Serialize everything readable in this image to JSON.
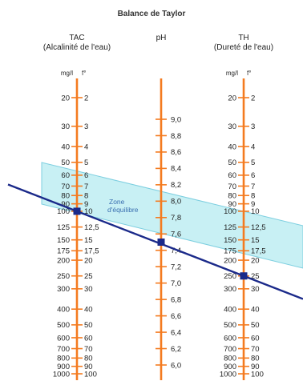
{
  "title": "Balance de Taylor",
  "columns": {
    "tac": {
      "title": "TAC",
      "subtitle": "(Alcalinité de l'eau)",
      "unit_mgl": "mg/l",
      "unit_f": "f°"
    },
    "ph": {
      "title": "pH"
    },
    "th": {
      "title": "TH",
      "subtitle": "(Dureté de l'eau)",
      "unit_mgl": "mg/l",
      "unit_f": "f°"
    }
  },
  "hardness_scale": [
    {
      "mgl": "20",
      "f": "2"
    },
    {
      "mgl": "30",
      "f": "3"
    },
    {
      "mgl": "40",
      "f": "4"
    },
    {
      "mgl": "50",
      "f": "5"
    },
    {
      "mgl": "60",
      "f": "6"
    },
    {
      "mgl": "70",
      "f": "7"
    },
    {
      "mgl": "80",
      "f": "8"
    },
    {
      "mgl": "90",
      "f": "9"
    },
    {
      "mgl": "100",
      "f": "10"
    },
    {
      "mgl": "125",
      "f": "12,5"
    },
    {
      "mgl": "150",
      "f": "15"
    },
    {
      "mgl": "175",
      "f": "17,5"
    },
    {
      "mgl": "200",
      "f": "20"
    },
    {
      "mgl": "250",
      "f": "25"
    },
    {
      "mgl": "300",
      "f": "30"
    },
    {
      "mgl": "400",
      "f": "40"
    },
    {
      "mgl": "500",
      "f": "50"
    },
    {
      "mgl": "600",
      "f": "60"
    },
    {
      "mgl": "700",
      "f": "70"
    },
    {
      "mgl": "800",
      "f": "80"
    },
    {
      "mgl": "900",
      "f": "90"
    },
    {
      "mgl": "1000",
      "f": "100"
    }
  ],
  "ph_scale": [
    "9,0",
    "8,8",
    "8,6",
    "8,4",
    "8,2",
    "8,0",
    "7,8",
    "7,6",
    "7,4",
    "7,2",
    "7,0",
    "6,8",
    "6,6",
    "6,4",
    "6,2",
    "6,0"
  ],
  "zone": {
    "label_line1": "Zone",
    "label_line2": "d'équilibre"
  },
  "example_line": {
    "tac_mgl": 100,
    "ph": 7.5,
    "th_mgl": 250
  },
  "colors": {
    "axis": "#F47B20",
    "zone_fill": "#C8F0F4",
    "zone_border": "#7ECFE0",
    "line": "#1B2A8A",
    "marker": "#1B2A8A"
  }
}
